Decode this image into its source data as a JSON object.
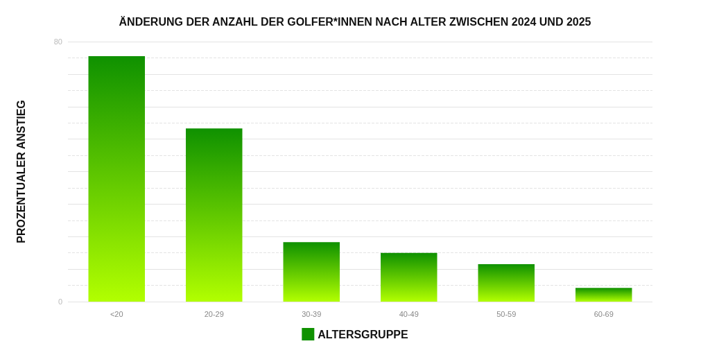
{
  "chart_data": {
    "type": "bar",
    "title": "ÄNDERUNG DER ANZAHL DER GOLFER*INNEN NACH ALTER ZWISCHEN 2024 UND 2025",
    "ylabel": "PROZENTUALER ANSTIEG",
    "categories": [
      "<20",
      "20-29",
      "30-39",
      "40-49",
      "50-59",
      "60-69"
    ],
    "series": [
      {
        "name": "ALTERSGRUPPE",
        "color": "#0f9100",
        "values": [
          75.5,
          53.3,
          18.3,
          15,
          11.5,
          4.2
        ]
      }
    ],
    "ylim": [
      0,
      80
    ],
    "yticks": [
      0,
      {
        "value": 10,
        "label": null
      },
      {
        "value": 20,
        "label": null
      },
      {
        "value": 30,
        "label": null
      },
      {
        "value": 40,
        "label": null
      },
      {
        "value": 50,
        "label": null
      },
      {
        "value": 60,
        "label": null
      },
      {
        "value": 70,
        "label": null
      },
      80
    ],
    "grid": "y",
    "legend": "bottom"
  }
}
